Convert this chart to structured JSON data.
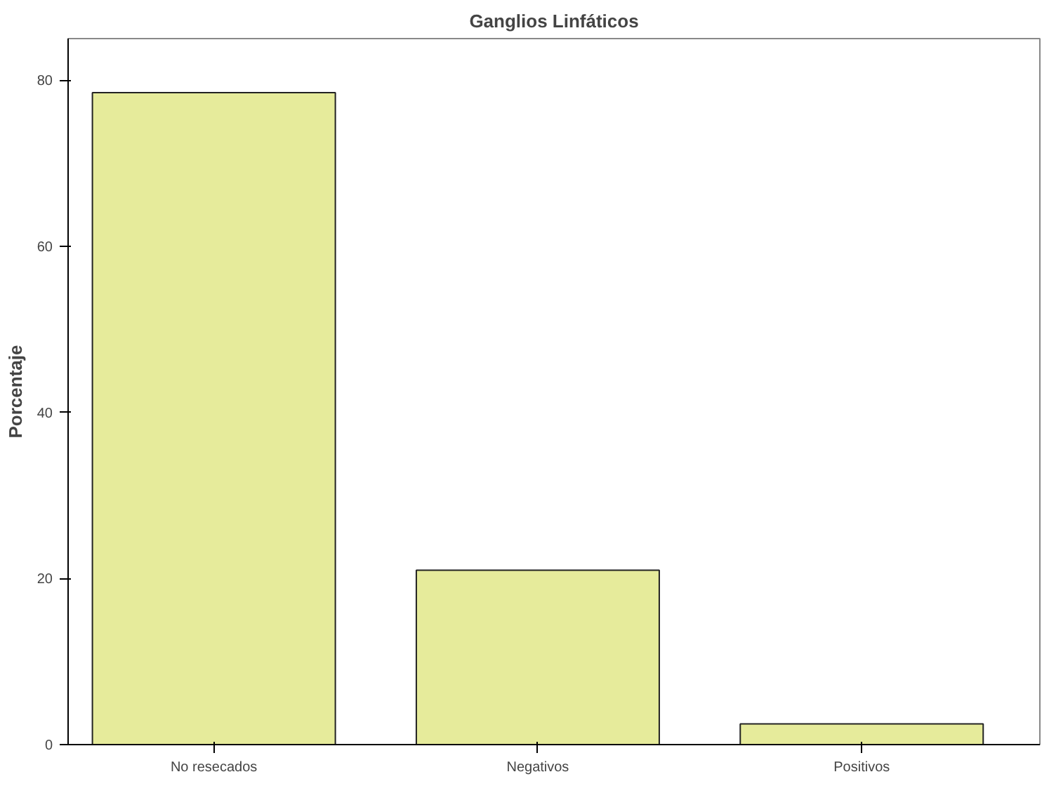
{
  "chart_data": {
    "type": "bar",
    "title": "Ganglios Linfáticos",
    "ylabel": "Porcentaje",
    "categories": [
      "No resecados",
      "Negativos",
      "Positivos"
    ],
    "values": [
      78.5,
      21,
      2.5
    ],
    "color": "#e6eb9b",
    "ylim": [
      0,
      85
    ],
    "yticks": [
      0,
      20,
      40,
      60,
      80
    ],
    "grid": false
  }
}
